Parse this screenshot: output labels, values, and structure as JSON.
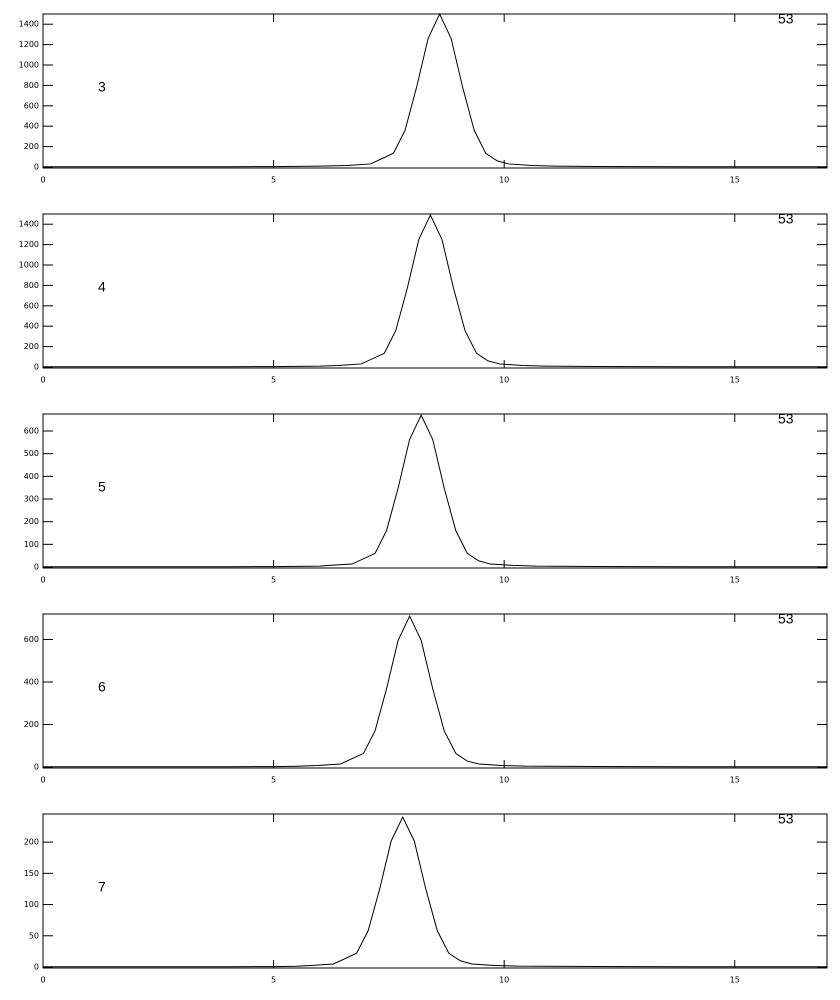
{
  "chart_data": [
    {
      "type": "line",
      "label": "3",
      "corner_label": "53",
      "color": "#000000",
      "x": [
        0,
        1,
        2,
        3,
        4,
        5,
        6,
        6.6,
        7.1,
        7.6,
        7.85,
        8.1,
        8.35,
        8.6,
        8.85,
        9.1,
        9.35,
        9.6,
        9.85,
        10.1,
        10.6,
        11.1,
        12,
        13,
        14,
        15,
        16,
        17
      ],
      "values": [
        2,
        2,
        2,
        3,
        3,
        4,
        8,
        15,
        30,
        135,
        360,
        780,
        1260,
        1500,
        1260,
        780,
        360,
        135,
        60,
        30,
        15,
        9,
        5,
        4,
        3,
        3,
        2,
        2
      ],
      "xlim": [
        0,
        17
      ],
      "xticks": [
        0,
        5,
        10,
        15
      ],
      "ylim": [
        0,
        1500
      ],
      "yticks": [
        0,
        200,
        400,
        600,
        800,
        1000,
        1200,
        1400
      ]
    },
    {
      "type": "line",
      "label": "4",
      "corner_label": "53",
      "color": "#000000",
      "x": [
        0,
        1,
        2,
        3,
        4,
        5,
        6,
        6.4,
        6.9,
        7.4,
        7.65,
        7.9,
        8.15,
        8.4,
        8.65,
        8.9,
        9.15,
        9.4,
        9.65,
        9.9,
        10.4,
        10.9,
        12,
        13,
        14,
        15,
        16,
        17
      ],
      "values": [
        2,
        2,
        2,
        3,
        3,
        4,
        8,
        15,
        30,
        134,
        358,
        775,
        1252,
        1490,
        1252,
        775,
        358,
        134,
        60,
        30,
        15,
        9,
        5,
        4,
        3,
        3,
        2,
        2
      ],
      "xlim": [
        0,
        17
      ],
      "xticks": [
        0,
        5,
        10,
        15
      ],
      "ylim": [
        0,
        1500
      ],
      "yticks": [
        0,
        200,
        400,
        600,
        800,
        1000,
        1200,
        1400
      ]
    },
    {
      "type": "line",
      "label": "5",
      "corner_label": "53",
      "color": "#000000",
      "x": [
        0,
        1,
        2,
        3,
        4,
        5,
        6,
        6.2,
        6.7,
        7.2,
        7.45,
        7.7,
        7.95,
        8.2,
        8.45,
        8.7,
        8.95,
        9.2,
        9.45,
        9.7,
        10.2,
        10.7,
        12,
        13,
        14,
        15,
        16,
        17
      ],
      "values": [
        1,
        1,
        1,
        1.3,
        1.3,
        1.8,
        3.6,
        7,
        13,
        60,
        161,
        348,
        563,
        670,
        563,
        348,
        161,
        60,
        27,
        13,
        7,
        4,
        2.2,
        1.8,
        1.3,
        1.3,
        1,
        1
      ],
      "xlim": [
        0,
        17
      ],
      "xticks": [
        0,
        5,
        10,
        15
      ],
      "ylim": [
        0,
        675
      ],
      "yticks": [
        0,
        100,
        200,
        300,
        400,
        500,
        600
      ]
    },
    {
      "type": "line",
      "label": "6",
      "corner_label": "53",
      "color": "#000000",
      "x": [
        0,
        1,
        2,
        3,
        4,
        5,
        5.5,
        5.95,
        6.45,
        6.95,
        7.2,
        7.45,
        7.7,
        7.95,
        8.2,
        8.45,
        8.7,
        8.95,
        9.2,
        9.45,
        9.95,
        10.45,
        12,
        13,
        14,
        15,
        16,
        17
      ],
      "values": [
        1,
        1,
        1,
        1.4,
        1.4,
        1.9,
        3.8,
        7,
        14,
        64,
        170,
        369,
        596,
        710,
        596,
        369,
        170,
        64,
        28,
        14,
        7,
        4,
        2.3,
        1.9,
        1.4,
        1.4,
        1,
        1
      ],
      "xlim": [
        0,
        17
      ],
      "xticks": [
        0,
        5,
        10,
        15
      ],
      "ylim": [
        0,
        720
      ],
      "yticks": [
        0,
        200,
        400,
        600
      ]
    },
    {
      "type": "line",
      "label": "7",
      "corner_label": "53",
      "color": "#000000",
      "x": [
        0,
        1,
        2,
        3,
        4,
        5,
        5.5,
        5.8,
        6.3,
        6.8,
        7.05,
        7.3,
        7.55,
        7.8,
        8.05,
        8.3,
        8.55,
        8.8,
        9.05,
        9.3,
        9.8,
        10.3,
        12,
        13,
        14,
        15,
        16,
        17
      ],
      "values": [
        0.3,
        0.3,
        0.3,
        0.5,
        0.5,
        0.6,
        1.3,
        2.4,
        4.8,
        22,
        58,
        125,
        202,
        240,
        202,
        125,
        58,
        22,
        10,
        4.8,
        2.4,
        1.4,
        0.8,
        0.6,
        0.5,
        0.5,
        0.3,
        0.3
      ],
      "xlim": [
        0,
        17
      ],
      "xticks": [
        0,
        5,
        10,
        15
      ],
      "ylim": [
        0,
        245
      ],
      "yticks": [
        0,
        50,
        100,
        150,
        200
      ]
    }
  ]
}
